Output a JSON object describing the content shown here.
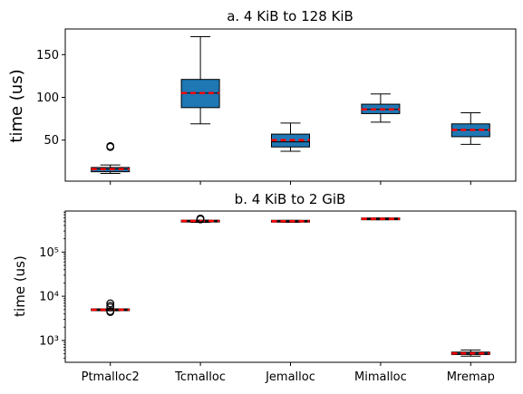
{
  "chart_data": [
    {
      "type": "box",
      "title": "a. 4 KiB to 128 KiB",
      "xlabel": "",
      "ylabel": "time (us)",
      "yscale": "linear",
      "ylim": [
        2,
        180
      ],
      "yticks": [
        50,
        100,
        150
      ],
      "categories": [
        "Ptmalloc2",
        "Tcmalloc",
        "Jemalloc",
        "Mimalloc",
        "Mremap"
      ],
      "show_xticklabels": false,
      "boxes": [
        {
          "whisker_low": 11,
          "q1": 13,
          "median": 16,
          "mean": 16,
          "q3": 18,
          "whisker_high": 21,
          "outliers": [
            42,
            43
          ]
        },
        {
          "whisker_low": 69,
          "q1": 88,
          "median": 105,
          "mean": 105,
          "q3": 121,
          "whisker_high": 171,
          "outliers": []
        },
        {
          "whisker_low": 37,
          "q1": 42,
          "median": 48,
          "mean": 50,
          "q3": 57,
          "whisker_high": 70,
          "outliers": []
        },
        {
          "whisker_low": 71,
          "q1": 81,
          "median": 86,
          "mean": 86,
          "q3": 92,
          "whisker_high": 104,
          "outliers": []
        },
        {
          "whisker_low": 45,
          "q1": 54,
          "median": 62,
          "mean": 62,
          "q3": 69,
          "whisker_high": 82,
          "outliers": []
        }
      ],
      "box_color": "#1f77b4",
      "mean_line_color": "#ff0000",
      "grid": false,
      "legend": "none"
    },
    {
      "type": "box",
      "title": "b. 4 KiB to 2 GiB",
      "xlabel": "",
      "ylabel": "time (us)",
      "yscale": "log",
      "ylim": [
        320,
        850000
      ],
      "yticks": [
        1000,
        10000,
        100000
      ],
      "ytick_labels": [
        "10³",
        "10⁴",
        "10⁵"
      ],
      "categories": [
        "Ptmalloc2",
        "Tcmalloc",
        "Jemalloc",
        "Mimalloc",
        "Mremap"
      ],
      "show_xticklabels": true,
      "boxes": [
        {
          "whisker_low": 4700,
          "q1": 4850,
          "median": 4950,
          "mean": 4950,
          "q3": 5050,
          "whisker_high": 5200,
          "outliers": [
            4400,
            4600,
            5600,
            6100,
            6900
          ]
        },
        {
          "whisker_low": 470000,
          "q1": 490000,
          "median": 505000,
          "mean": 505000,
          "q3": 515000,
          "whisker_high": 530000,
          "outliers": [
            550000,
            560000,
            575000
          ]
        },
        {
          "whisker_low": 475000,
          "q1": 490000,
          "median": 500000,
          "mean": 500000,
          "q3": 510000,
          "whisker_high": 520000,
          "outliers": []
        },
        {
          "whisker_low": 540000,
          "q1": 555000,
          "median": 565000,
          "mean": 565000,
          "q3": 575000,
          "whisker_high": 590000,
          "outliers": []
        },
        {
          "whisker_low": 440,
          "q1": 480,
          "median": 510,
          "mean": 510,
          "q3": 545,
          "whisker_high": 610,
          "outliers": []
        }
      ],
      "box_color": "#1f77b4",
      "mean_line_color": "#ff0000",
      "grid": false,
      "legend": "none"
    }
  ]
}
